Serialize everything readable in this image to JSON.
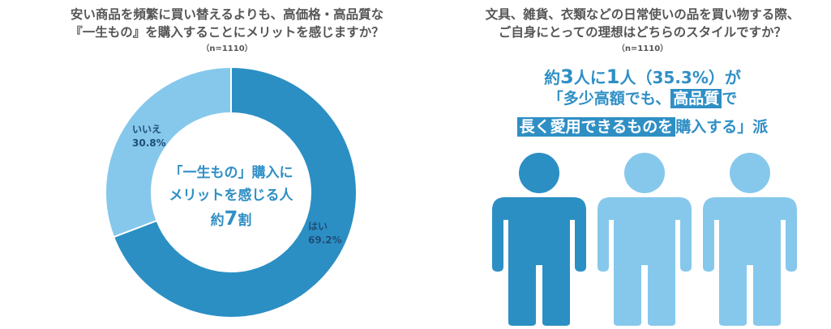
{
  "colors": {
    "dark": "#2b8fc4",
    "light": "#86c8ec",
    "text": "#2f8fc5"
  },
  "left": {
    "title_line1": "安い商品を頻繁に買い替えるよりも、高価格・高品質な",
    "title_line2": "『一生もの』を購入することにメリットを感じますか？",
    "sample": "（n=1110）",
    "center_line1": "「一生もの」購入に",
    "center_line2": "メリットを感じる人",
    "center_prefix": "約",
    "center_value": "7",
    "center_suffix": "割"
  },
  "chart_data": {
    "type": "pie",
    "categories": [
      "はい",
      "いいえ"
    ],
    "values": [
      69.2,
      30.8
    ],
    "value_labels": [
      "69.2%",
      "30.8%"
    ]
  },
  "right": {
    "title_line1": "文具、雑貨、衣類などの日常使いの品を買い物する際、",
    "title_line2": "ご自身にとっての理想はどちらのスタイルですか？",
    "sample": "（n=1110）",
    "headline1_a": "約",
    "headline1_b": "3",
    "headline1_c": "人に",
    "headline1_d": "1",
    "headline1_e": "人（35.3%）が",
    "headline2_a": "「多少高額でも、",
    "headline2_hl": "高品質",
    "headline2_b": "で",
    "headline3_hl": "長く愛用できるものを",
    "headline3_b": "購入する」派",
    "people_highlighted": 1,
    "people_total": 3
  }
}
